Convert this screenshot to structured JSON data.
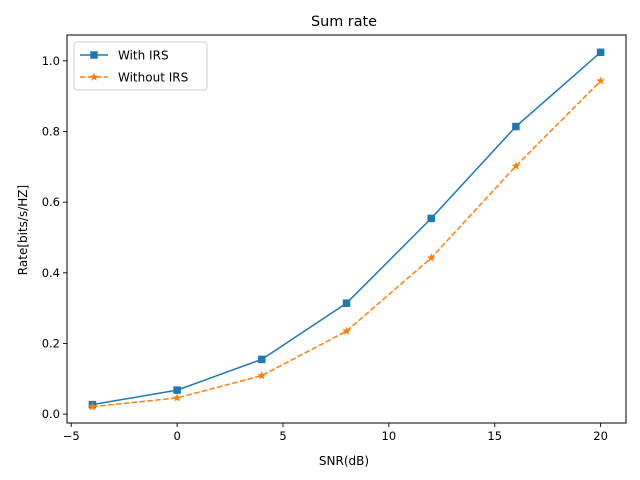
{
  "chart_data": {
    "type": "line",
    "title": "Sum rate",
    "xlabel": "SNR(dB)",
    "ylabel": "Rate[bits/s/HZ]",
    "x": [
      -4,
      0,
      4,
      8,
      12,
      16,
      20
    ],
    "xlim": [
      -5.2,
      21.2
    ],
    "ylim": [
      -0.025,
      1.073
    ],
    "xticks": [
      -5,
      0,
      5,
      10,
      15,
      20
    ],
    "xtick_labels": [
      "−5",
      "0",
      "5",
      "10",
      "15",
      "20"
    ],
    "yticks": [
      0.0,
      0.2,
      0.4,
      0.6,
      0.8,
      1.0
    ],
    "ytick_labels": [
      "0.0",
      "0.2",
      "0.4",
      "0.6",
      "0.8",
      "1.0"
    ],
    "grid": false,
    "legend_position": "top-left",
    "series": [
      {
        "name": "With IRS",
        "values": [
          0.027,
          0.068,
          0.155,
          0.314,
          0.554,
          0.814,
          1.024
        ],
        "color": "#1f77b4",
        "line_style": "solid",
        "marker": "square"
      },
      {
        "name": "Without IRS",
        "values": [
          0.021,
          0.046,
          0.109,
          0.235,
          0.442,
          0.702,
          0.943
        ],
        "color": "#ff7f0e",
        "line_style": "dashed",
        "marker": "star"
      }
    ]
  }
}
